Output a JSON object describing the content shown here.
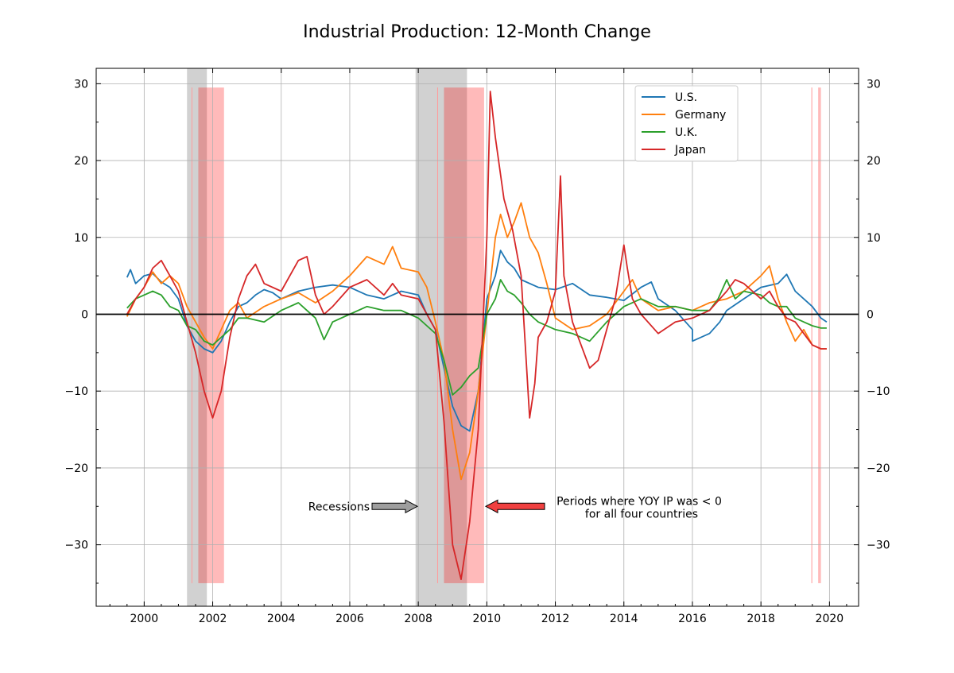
{
  "chart_data": {
    "type": "line",
    "title": "Industrial Production: 12-Month Change",
    "xlabel": "",
    "ylabel": "",
    "xlim": [
      1998.6,
      2020.85
    ],
    "ylim": [
      -38,
      32
    ],
    "x_ticks": [
      2000,
      2002,
      2004,
      2006,
      2008,
      2010,
      2012,
      2014,
      2016,
      2018,
      2020
    ],
    "y_ticks": [
      30,
      20,
      10,
      0,
      -10,
      -20,
      -30
    ],
    "y_tick_labels": [
      "30",
      "20",
      "10",
      "0",
      "−10",
      "−20",
      "−30"
    ],
    "grid": true,
    "legend_position": "top-right",
    "recessions": [
      [
        2001.25,
        2001.83
      ],
      [
        2007.92,
        2009.42
      ]
    ],
    "negative_all_periods": [
      [
        2001.58,
        2002.33
      ],
      [
        2008.75,
        2009.92
      ],
      [
        2019.67,
        2019.75
      ]
    ],
    "annotations": {
      "recessions_label": "Recessions",
      "negative_label_line1": "Periods where YOY IP was < 0",
      "negative_label_line2": "for all four countries"
    },
    "series": [
      {
        "name": "U.S.",
        "color": "#1f77b4",
        "points": [
          [
            1999.5,
            4.8
          ],
          [
            1999.6,
            5.8
          ],
          [
            1999.75,
            4
          ],
          [
            2000,
            5
          ],
          [
            2000.25,
            5.3
          ],
          [
            2000.5,
            4.2
          ],
          [
            2000.75,
            3.5
          ],
          [
            2001,
            2
          ],
          [
            2001.25,
            -1.5
          ],
          [
            2001.5,
            -3.5
          ],
          [
            2001.75,
            -4.5
          ],
          [
            2002,
            -5
          ],
          [
            2002.25,
            -3.5
          ],
          [
            2002.5,
            -1
          ],
          [
            2002.75,
            1
          ],
          [
            2003,
            1.5
          ],
          [
            2003.25,
            2.5
          ],
          [
            2003.5,
            3.2
          ],
          [
            2003.75,
            2.8
          ],
          [
            2004,
            2
          ],
          [
            2004.5,
            3
          ],
          [
            2005,
            3.5
          ],
          [
            2005.5,
            3.8
          ],
          [
            2006,
            3.5
          ],
          [
            2006.5,
            2.5
          ],
          [
            2007,
            2
          ],
          [
            2007.5,
            3
          ],
          [
            2008,
            2.5
          ],
          [
            2008.25,
            0
          ],
          [
            2008.5,
            -2
          ],
          [
            2008.75,
            -7
          ],
          [
            2009,
            -12
          ],
          [
            2009.25,
            -14.5
          ],
          [
            2009.5,
            -15.2
          ],
          [
            2009.75,
            -10
          ],
          [
            2010,
            2
          ],
          [
            2010.25,
            5
          ],
          [
            2010.4,
            8.3
          ],
          [
            2010.6,
            6.8
          ],
          [
            2010.8,
            6
          ],
          [
            2011,
            4.5
          ],
          [
            2011.5,
            3.5
          ],
          [
            2012,
            3.2
          ],
          [
            2012.5,
            4
          ],
          [
            2013,
            2.5
          ],
          [
            2013.5,
            2.2
          ],
          [
            2014,
            1.8
          ],
          [
            2014.5,
            3.5
          ],
          [
            2014.8,
            4.2
          ],
          [
            2015,
            2
          ],
          [
            2015.5,
            0.5
          ],
          [
            2016,
            -2
          ],
          [
            2016,
            -3.5
          ],
          [
            2016.5,
            -2.5
          ],
          [
            2016.8,
            -1
          ],
          [
            2017,
            0.5
          ],
          [
            2017.5,
            2
          ],
          [
            2018,
            3.5
          ],
          [
            2018.5,
            4
          ],
          [
            2018.75,
            5.2
          ],
          [
            2019,
            3
          ],
          [
            2019.5,
            1
          ],
          [
            2019.75,
            -0.5
          ],
          [
            2019.92,
            -1
          ]
        ]
      },
      {
        "name": "Germany",
        "color": "#ff7f0e",
        "points": [
          [
            1999.5,
            -0.3
          ],
          [
            1999.75,
            2
          ],
          [
            2000,
            3.5
          ],
          [
            2000.25,
            5.5
          ],
          [
            2000.5,
            4
          ],
          [
            2000.75,
            5
          ],
          [
            2001,
            4
          ],
          [
            2001.25,
            1
          ],
          [
            2001.5,
            -1
          ],
          [
            2001.75,
            -3
          ],
          [
            2002,
            -4.5
          ],
          [
            2002.25,
            -2
          ],
          [
            2002.5,
            0.5
          ],
          [
            2002.75,
            1.5
          ],
          [
            2003,
            -0.5
          ],
          [
            2003.5,
            1
          ],
          [
            2004,
            2
          ],
          [
            2004.5,
            2.8
          ],
          [
            2005,
            1.5
          ],
          [
            2005.5,
            3
          ],
          [
            2006,
            5
          ],
          [
            2006.5,
            7.5
          ],
          [
            2007,
            6.5
          ],
          [
            2007.25,
            8.8
          ],
          [
            2007.5,
            6
          ],
          [
            2008,
            5.5
          ],
          [
            2008.25,
            3.5
          ],
          [
            2008.5,
            -1
          ],
          [
            2008.75,
            -6
          ],
          [
            2009,
            -15
          ],
          [
            2009.25,
            -21.5
          ],
          [
            2009.5,
            -18
          ],
          [
            2009.75,
            -10
          ],
          [
            2010,
            0
          ],
          [
            2010.25,
            10
          ],
          [
            2010.4,
            13
          ],
          [
            2010.6,
            10
          ],
          [
            2010.8,
            12
          ],
          [
            2011,
            14.5
          ],
          [
            2011.25,
            10
          ],
          [
            2011.5,
            8
          ],
          [
            2011.75,
            4
          ],
          [
            2012,
            -0.5
          ],
          [
            2012.5,
            -2
          ],
          [
            2013,
            -1.5
          ],
          [
            2013.5,
            0
          ],
          [
            2014,
            3
          ],
          [
            2014.25,
            4.5
          ],
          [
            2014.5,
            2
          ],
          [
            2015,
            0.5
          ],
          [
            2015.5,
            1
          ],
          [
            2016,
            0.5
          ],
          [
            2016.5,
            1.5
          ],
          [
            2017,
            2
          ],
          [
            2017.5,
            3
          ],
          [
            2018,
            5
          ],
          [
            2018.25,
            6.3
          ],
          [
            2018.5,
            2
          ],
          [
            2018.75,
            -1
          ],
          [
            2019,
            -3.5
          ],
          [
            2019.25,
            -2
          ],
          [
            2019.5,
            -4
          ],
          [
            2019.75,
            -4.5
          ],
          [
            2019.92,
            -4.5
          ]
        ]
      },
      {
        "name": "U.K.",
        "color": "#2ca02c",
        "points": [
          [
            1999.5,
            0.8
          ],
          [
            1999.75,
            2
          ],
          [
            2000,
            2.5
          ],
          [
            2000.25,
            3
          ],
          [
            2000.5,
            2.5
          ],
          [
            2000.75,
            1
          ],
          [
            2001,
            0.5
          ],
          [
            2001.25,
            -1.5
          ],
          [
            2001.5,
            -2
          ],
          [
            2001.75,
            -3.5
          ],
          [
            2002,
            -4
          ],
          [
            2002.25,
            -3
          ],
          [
            2002.5,
            -2
          ],
          [
            2002.75,
            -0.5
          ],
          [
            2003,
            -0.5
          ],
          [
            2003.5,
            -1
          ],
          [
            2004,
            0.5
          ],
          [
            2004.5,
            1.5
          ],
          [
            2005,
            -0.5
          ],
          [
            2005.25,
            -3.3
          ],
          [
            2005.5,
            -1
          ],
          [
            2006,
            0
          ],
          [
            2006.5,
            1
          ],
          [
            2007,
            0.5
          ],
          [
            2007.5,
            0.5
          ],
          [
            2008,
            -0.5
          ],
          [
            2008.25,
            -1.5
          ],
          [
            2008.5,
            -2.5
          ],
          [
            2008.75,
            -6
          ],
          [
            2009,
            -10.5
          ],
          [
            2009.25,
            -9.5
          ],
          [
            2009.5,
            -8
          ],
          [
            2009.75,
            -7
          ],
          [
            2010,
            0
          ],
          [
            2010.25,
            2
          ],
          [
            2010.4,
            4.5
          ],
          [
            2010.6,
            3
          ],
          [
            2010.8,
            2.5
          ],
          [
            2011,
            1.5
          ],
          [
            2011.25,
            0
          ],
          [
            2011.5,
            -1
          ],
          [
            2012,
            -2
          ],
          [
            2012.5,
            -2.5
          ],
          [
            2013,
            -3.5
          ],
          [
            2013.5,
            -1
          ],
          [
            2014,
            1
          ],
          [
            2014.5,
            2
          ],
          [
            2015,
            1
          ],
          [
            2015.5,
            1
          ],
          [
            2016,
            0.5
          ],
          [
            2016.5,
            0.5
          ],
          [
            2016.75,
            2
          ],
          [
            2017,
            4.5
          ],
          [
            2017.25,
            2
          ],
          [
            2017.5,
            3
          ],
          [
            2018,
            2.5
          ],
          [
            2018.25,
            1.5
          ],
          [
            2018.5,
            1
          ],
          [
            2018.75,
            1
          ],
          [
            2019,
            -0.5
          ],
          [
            2019.25,
            -1
          ],
          [
            2019.5,
            -1.5
          ],
          [
            2019.75,
            -1.8
          ],
          [
            2019.92,
            -1.8
          ]
        ]
      },
      {
        "name": "Japan",
        "color": "#d62728",
        "points": [
          [
            1999.5,
            0
          ],
          [
            1999.75,
            2
          ],
          [
            2000,
            3.5
          ],
          [
            2000.25,
            6
          ],
          [
            2000.5,
            7
          ],
          [
            2000.75,
            5
          ],
          [
            2001,
            3
          ],
          [
            2001.25,
            -1
          ],
          [
            2001.5,
            -5
          ],
          [
            2001.75,
            -10
          ],
          [
            2002,
            -13.5
          ],
          [
            2002.25,
            -10
          ],
          [
            2002.5,
            -3
          ],
          [
            2002.75,
            2
          ],
          [
            2003,
            5
          ],
          [
            2003.25,
            6.5
          ],
          [
            2003.5,
            4
          ],
          [
            2004,
            3
          ],
          [
            2004.5,
            7
          ],
          [
            2004.75,
            7.5
          ],
          [
            2005,
            2.5
          ],
          [
            2005.25,
            0
          ],
          [
            2005.5,
            1
          ],
          [
            2006,
            3.5
          ],
          [
            2006.5,
            4.5
          ],
          [
            2007,
            2.5
          ],
          [
            2007.25,
            4
          ],
          [
            2007.5,
            2.5
          ],
          [
            2008,
            2
          ],
          [
            2008.25,
            0
          ],
          [
            2008.5,
            -2
          ],
          [
            2008.75,
            -14
          ],
          [
            2009,
            -30
          ],
          [
            2009.25,
            -34.5
          ],
          [
            2009.5,
            -27
          ],
          [
            2009.75,
            -15
          ],
          [
            2010,
            10
          ],
          [
            2010.1,
            29
          ],
          [
            2010.25,
            23
          ],
          [
            2010.5,
            15
          ],
          [
            2010.75,
            11
          ],
          [
            2011,
            5
          ],
          [
            2011.25,
            -13.5
          ],
          [
            2011.4,
            -9
          ],
          [
            2011.5,
            -3
          ],
          [
            2011.75,
            -1
          ],
          [
            2012,
            3
          ],
          [
            2012.15,
            18
          ],
          [
            2012.25,
            5
          ],
          [
            2012.5,
            -1
          ],
          [
            2012.75,
            -4
          ],
          [
            2013,
            -7
          ],
          [
            2013.25,
            -6
          ],
          [
            2013.5,
            -2
          ],
          [
            2013.75,
            2
          ],
          [
            2014,
            9
          ],
          [
            2014.1,
            6
          ],
          [
            2014.25,
            2
          ],
          [
            2014.5,
            0
          ],
          [
            2015,
            -2.5
          ],
          [
            2015.5,
            -1
          ],
          [
            2016,
            -0.5
          ],
          [
            2016.5,
            0.5
          ],
          [
            2017,
            3
          ],
          [
            2017.25,
            4.5
          ],
          [
            2017.5,
            4
          ],
          [
            2018,
            2
          ],
          [
            2018.25,
            3
          ],
          [
            2018.5,
            1
          ],
          [
            2018.75,
            -0.5
          ],
          [
            2019,
            -1
          ],
          [
            2019.25,
            -2.5
          ],
          [
            2019.5,
            -4
          ],
          [
            2019.75,
            -4.5
          ],
          [
            2019.92,
            -4.5
          ]
        ]
      }
    ]
  }
}
